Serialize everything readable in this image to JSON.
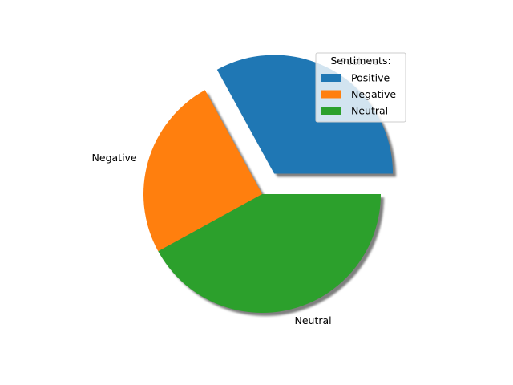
{
  "chart_data": {
    "type": "pie",
    "categories": [
      "Positive",
      "Negative",
      "Neutral"
    ],
    "values": [
      33,
      25,
      42
    ],
    "colors": [
      "#1f77b4",
      "#ff7f0e",
      "#2ca02c"
    ],
    "explode": [
      0.2,
      0,
      0
    ],
    "shadow": true,
    "startangle": 0,
    "legend": {
      "title": "Sentiments:",
      "placement": "upper right",
      "entries": [
        "Positive",
        "Negative",
        "Neutral"
      ]
    }
  }
}
